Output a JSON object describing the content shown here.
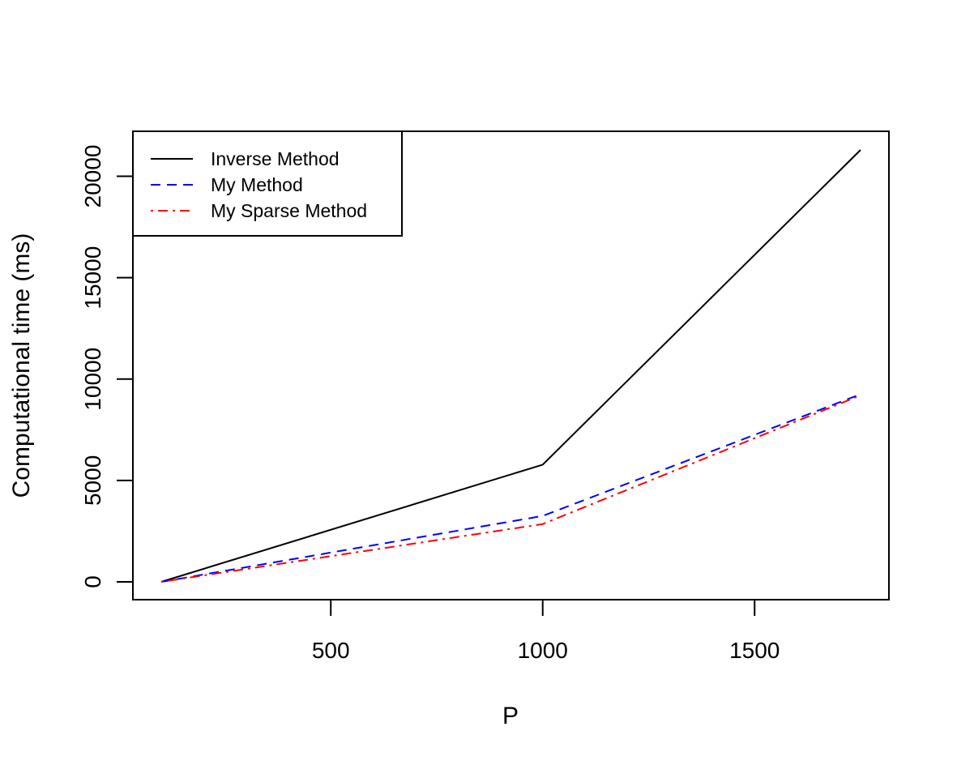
{
  "chart_data": {
    "type": "line",
    "title": "",
    "xlabel": "P",
    "ylabel": "Computational time (ms)",
    "xlim": [
      100,
      1750
    ],
    "ylim": [
      0,
      21300
    ],
    "x_ticks": [
      500,
      1000,
      1500
    ],
    "y_ticks": [
      0,
      5000,
      10000,
      15000,
      20000
    ],
    "x_tick_labels": [
      "500",
      "1000",
      "1500"
    ],
    "y_tick_labels": [
      "0",
      "5000",
      "10000",
      "15000",
      "20000"
    ],
    "grid": false,
    "legend_position": "top-left",
    "x": [
      100,
      1000,
      1750
    ],
    "series": [
      {
        "name": "Inverse Method",
        "values": [
          0,
          5780,
          21300
        ],
        "color": "#000000",
        "line_style": "solid"
      },
      {
        "name": "My Method",
        "values": [
          0,
          3250,
          9250
        ],
        "color": "#0000ff",
        "line_style": "dashed"
      },
      {
        "name": "My Sparse Method",
        "values": [
          0,
          2850,
          9200
        ],
        "color": "#ff0000",
        "line_style": "dotdash"
      }
    ]
  }
}
